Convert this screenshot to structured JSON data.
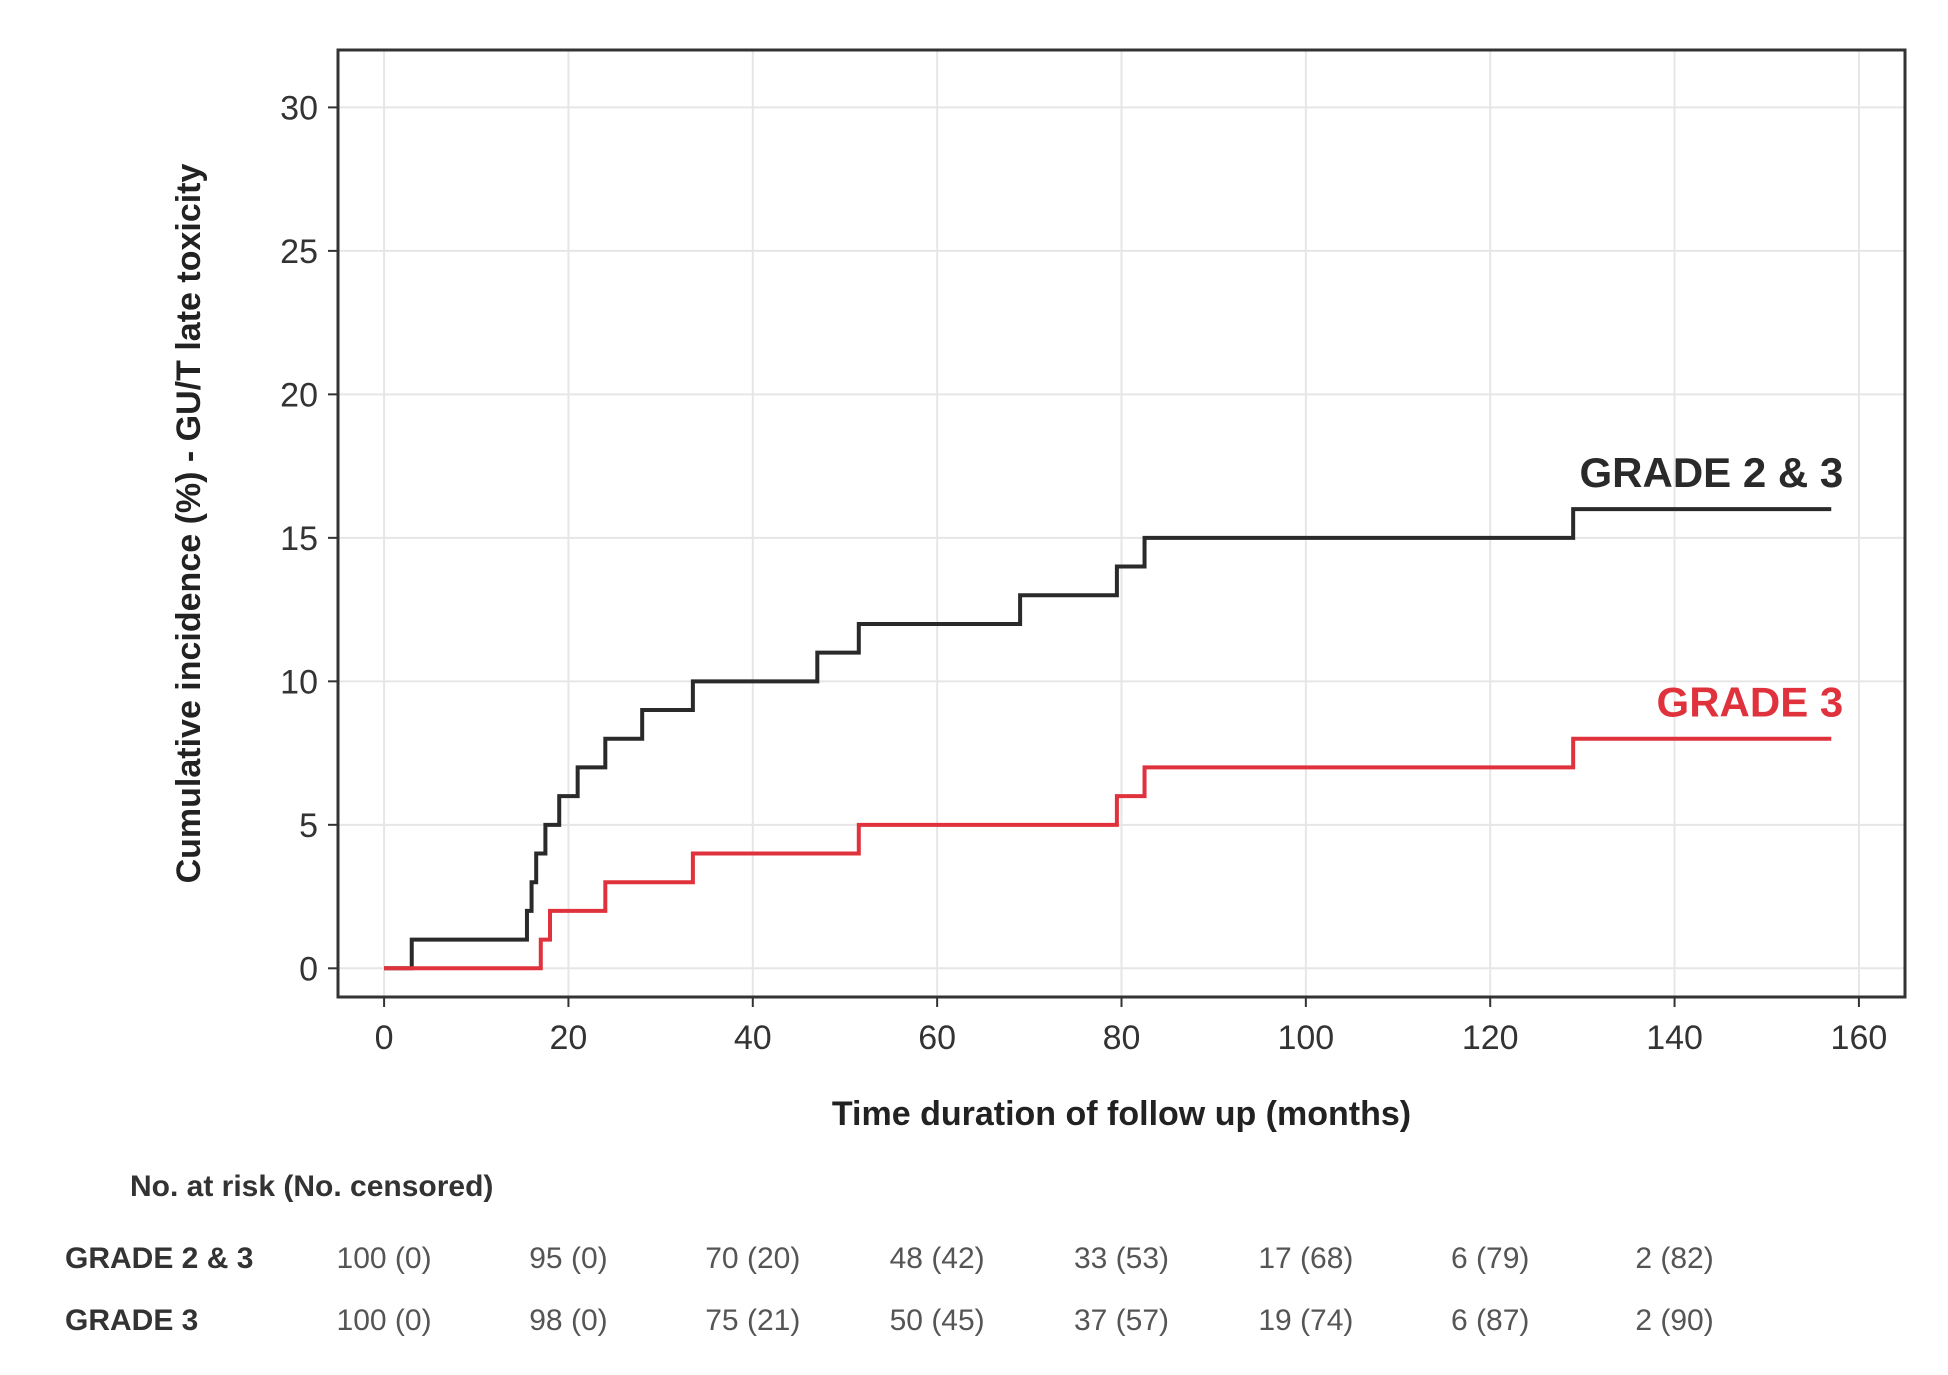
{
  "chart_data": {
    "type": "line",
    "step": true,
    "title": "",
    "xlabel": "Time duration of follow up (months)",
    "ylabel": "Cumulative incidence (%) - GU/T late toxicity",
    "xlim": [
      -5,
      165
    ],
    "ylim": [
      -1,
      32
    ],
    "x_ticks": [
      0,
      20,
      40,
      60,
      80,
      100,
      120,
      140,
      160
    ],
    "y_ticks": [
      0,
      5,
      10,
      15,
      20,
      25,
      30
    ],
    "grid": true,
    "legend": "inline labels",
    "series": [
      {
        "name": "GRADE 2 & 3",
        "color": "#2a2a2a",
        "x": [
          0,
          3,
          15.5,
          16,
          16.5,
          17.5,
          19,
          21,
          21.5,
          24,
          28,
          33.5,
          47,
          51.5,
          69,
          79.5,
          82.5,
          129,
          157
        ],
        "y": [
          0,
          1,
          2,
          3,
          4,
          5,
          6,
          7,
          7,
          8,
          9,
          10,
          11,
          12,
          13,
          14,
          15,
          16,
          16
        ]
      },
      {
        "name": "GRADE 3",
        "color": "#e0323c",
        "x": [
          0,
          17,
          18,
          24,
          33.5,
          51.5,
          79.5,
          82.5,
          129,
          157
        ],
        "y": [
          0,
          1,
          2,
          3,
          4,
          5,
          6,
          7,
          8,
          8
        ]
      }
    ],
    "risk_table": {
      "heading": "No. at risk (No. censored)",
      "rows": [
        {
          "label": "GRADE 2 & 3",
          "values": [
            "100 (0)",
            "95 (0)",
            "70 (20)",
            "48 (42)",
            "33 (53)",
            "17 (68)",
            "6 (79)",
            "2 (82)"
          ]
        },
        {
          "label": "GRADE 3",
          "values": [
            "100 (0)",
            "98 (0)",
            "75 (21)",
            "50 (45)",
            "37 (57)",
            "19 (74)",
            "6 (87)",
            "2 (90)"
          ]
        }
      ]
    }
  }
}
